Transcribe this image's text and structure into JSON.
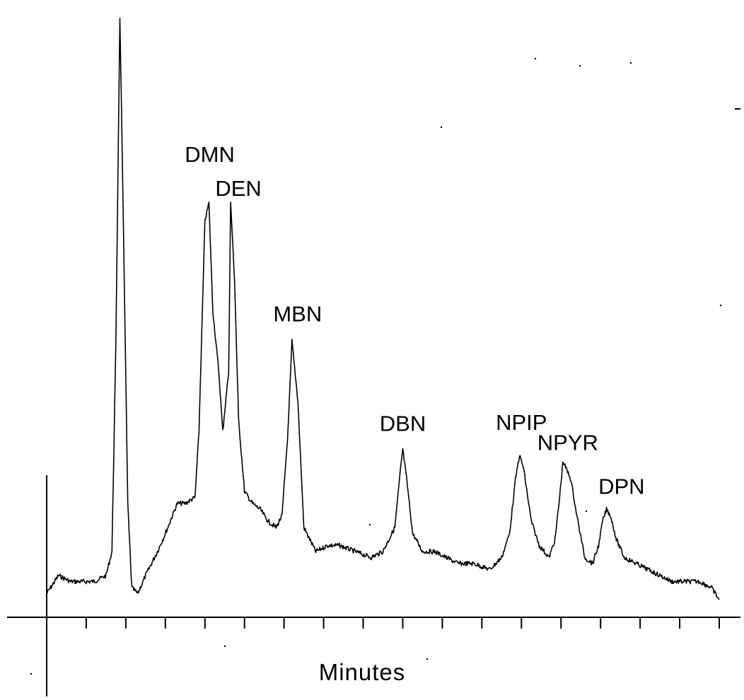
{
  "chart_data": {
    "type": "line",
    "title": "",
    "xlabel": "Minutes",
    "ylabel": "",
    "x_ticks": 18,
    "xlim": [
      0,
      17
    ],
    "ylim": [
      0,
      100
    ],
    "grid": false,
    "legend": "none",
    "series": [
      {
        "x": [
          0,
          0.3,
          0.6,
          0.9,
          1.2,
          1.5,
          1.65,
          1.75,
          1.85,
          1.95,
          2.05,
          2.15,
          2.3,
          2.5,
          2.8,
          3.0,
          3.3,
          3.5,
          3.75,
          3.85,
          4.0,
          4.1,
          4.2,
          4.35,
          4.45,
          4.6,
          4.65,
          4.75,
          4.85,
          5.0,
          5.2,
          5.4,
          5.6,
          5.8,
          5.95,
          6.1,
          6.2,
          6.35,
          6.5,
          6.8,
          7.1,
          7.4,
          7.8,
          8.2,
          8.5,
          8.8,
          8.95,
          9.0,
          9.1,
          9.25,
          9.5,
          9.8,
          10.1,
          10.4,
          10.8,
          11.2,
          11.5,
          11.7,
          11.85,
          11.95,
          12.05,
          12.25,
          12.45,
          12.7,
          12.85,
          12.95,
          13.05,
          13.25,
          13.4,
          13.6,
          13.8,
          13.95,
          14.05,
          14.15,
          14.25,
          14.4,
          14.6,
          14.9,
          15.2,
          15.5,
          15.8,
          16.1,
          16.5,
          16.8,
          17.0
        ],
        "y": [
          3,
          6,
          5,
          5,
          5,
          6,
          10,
          45,
          99,
          60,
          18,
          4,
          3,
          6,
          10,
          13,
          18,
          18,
          19,
          30,
          65,
          68,
          50,
          40,
          30,
          40,
          68,
          55,
          32,
          20,
          18,
          17,
          15,
          14,
          16,
          30,
          45,
          35,
          14,
          10,
          11,
          11,
          10,
          9,
          10,
          14,
          24,
          27,
          22,
          13,
          10,
          10,
          9,
          8,
          8,
          7,
          9,
          13,
          22,
          26,
          24,
          15,
          11,
          9,
          12,
          18,
          25,
          22,
          16,
          9,
          8,
          11,
          15,
          17,
          16,
          12,
          9,
          8,
          7,
          6,
          5,
          5,
          5,
          4,
          2
        ]
      }
    ],
    "annotations": [
      {
        "text": "DMN",
        "x": 4.05,
        "y": 68
      },
      {
        "text": "DEN",
        "x": 4.65,
        "y": 68
      },
      {
        "text": "MBN",
        "x": 6.2,
        "y": 45
      },
      {
        "text": "DBN",
        "x": 9.0,
        "y": 27
      },
      {
        "text": "NPIP",
        "x": 12.0,
        "y": 26
      },
      {
        "text": "NPYR",
        "x": 13.1,
        "y": 25
      },
      {
        "text": "DPN",
        "x": 14.35,
        "y": 17
      }
    ]
  }
}
